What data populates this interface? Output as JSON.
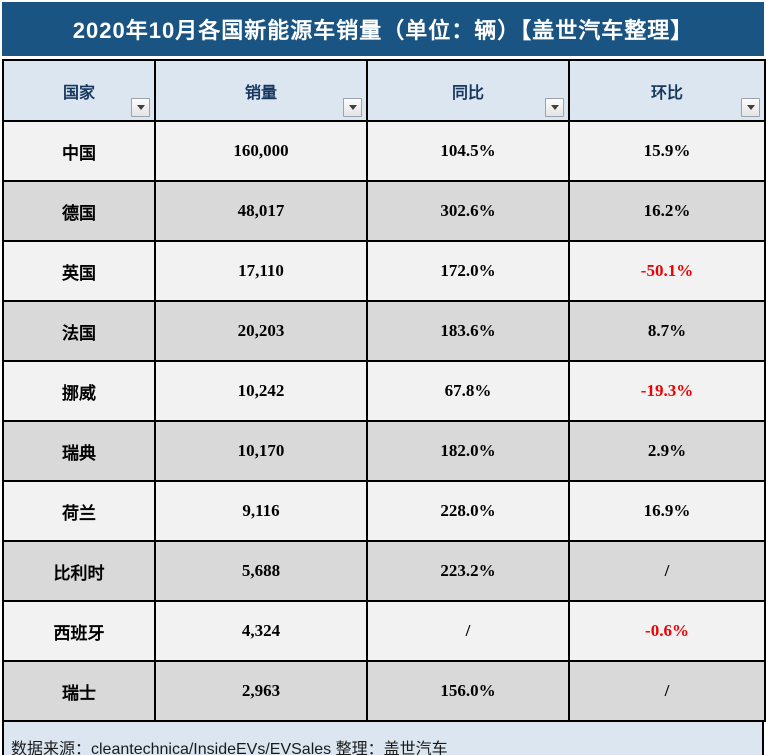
{
  "title": "2020年10月各国新能源车销量（单位：辆）【盖世汽车整理】",
  "columns": [
    {
      "label": "国家"
    },
    {
      "label": "销量"
    },
    {
      "label": "同比"
    },
    {
      "label": "环比"
    }
  ],
  "rows": [
    {
      "country": "中国",
      "sales": "160,000",
      "yoy": "104.5%",
      "mom": "15.9%"
    },
    {
      "country": "德国",
      "sales": "48,017",
      "yoy": "302.6%",
      "mom": "16.2%"
    },
    {
      "country": "英国",
      "sales": "17,110",
      "yoy": "172.0%",
      "mom": "-50.1%"
    },
    {
      "country": "法国",
      "sales": "20,203",
      "yoy": "183.6%",
      "mom": "8.7%"
    },
    {
      "country": "挪威",
      "sales": "10,242",
      "yoy": "67.8%",
      "mom": "-19.3%"
    },
    {
      "country": "瑞典",
      "sales": "10,170",
      "yoy": "182.0%",
      "mom": "2.9%"
    },
    {
      "country": "荷兰",
      "sales": "9,116",
      "yoy": "228.0%",
      "mom": "16.9%"
    },
    {
      "country": "比利时",
      "sales": "5,688",
      "yoy": "223.2%",
      "mom": "/"
    },
    {
      "country": "西班牙",
      "sales": "4,324",
      "yoy": "/",
      "mom": "-0.6%"
    },
    {
      "country": "瑞士",
      "sales": "2,963",
      "yoy": "156.0%",
      "mom": "/"
    }
  ],
  "footer": {
    "source_text": "数据来源：cleantechnica/InsideEVs/EVSales 整理：盖世汽车"
  },
  "colors": {
    "title_bar_bg": "#1a5482",
    "header_bg": "#dce6f1",
    "header_text": "#17375e",
    "row_odd_bg": "#f2f2f2",
    "row_even_bg": "#d9d9d9",
    "negative_value": "#ee0000",
    "footer_bg": "#dce6f1",
    "border": "#000000"
  },
  "chart_data": {
    "type": "table",
    "title": "2020年10月各国新能源车销量（单位：辆）【盖世汽车整理】",
    "columns": [
      "国家",
      "销量",
      "同比",
      "环比"
    ],
    "rows": [
      [
        "中国",
        "160,000",
        "104.5%",
        "15.9%"
      ],
      [
        "德国",
        "48,017",
        "302.6%",
        "16.2%"
      ],
      [
        "英国",
        "17,110",
        "172.0%",
        "-50.1%"
      ],
      [
        "法国",
        "20,203",
        "183.6%",
        "8.7%"
      ],
      [
        "挪威",
        "10,242",
        "67.8%",
        "-19.3%"
      ],
      [
        "瑞典",
        "10,170",
        "182.0%",
        "2.9%"
      ],
      [
        "荷兰",
        "9,116",
        "228.0%",
        "16.9%"
      ],
      [
        "比利时",
        "5,688",
        "223.2%",
        "/"
      ],
      [
        "西班牙",
        "4,324",
        "/",
        "-0.6%"
      ],
      [
        "瑞士",
        "2,963",
        "156.0%",
        "/"
      ]
    ],
    "sales_values": [
      160000,
      48017,
      17110,
      20203,
      10242,
      10170,
      9116,
      5688,
      4324,
      2963
    ],
    "yoy_percent": [
      104.5,
      302.6,
      172.0,
      183.6,
      67.8,
      182.0,
      228.0,
      223.2,
      null,
      156.0
    ],
    "mom_percent": [
      15.9,
      16.2,
      -50.1,
      8.7,
      -19.3,
      2.9,
      16.9,
      null,
      -0.6,
      null
    ],
    "annotations": [
      "数据来源：cleantechnica/InsideEVs/EVSales 整理：盖世汽车"
    ]
  }
}
